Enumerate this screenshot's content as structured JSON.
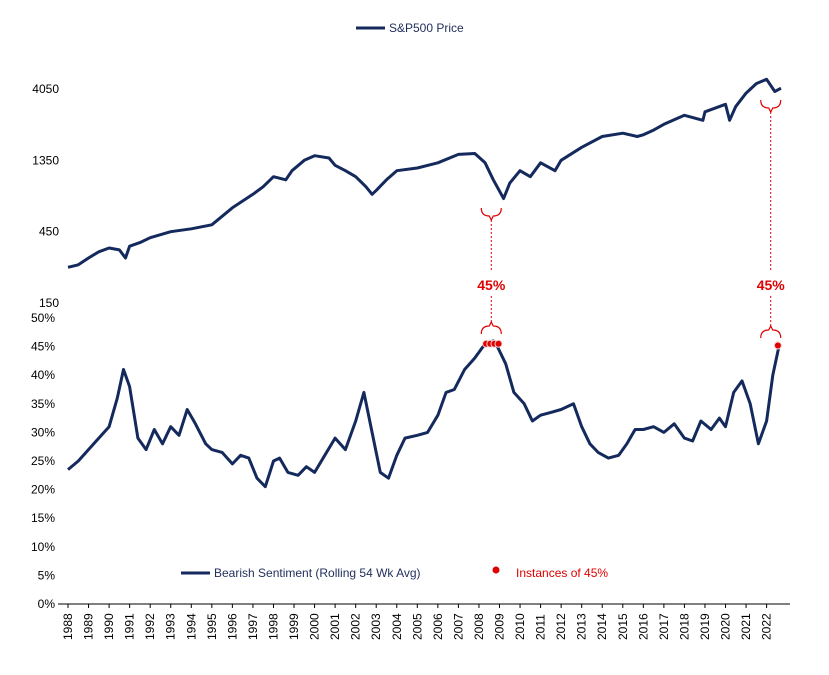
{
  "chart_data": [
    {
      "type": "line",
      "scale": "log",
      "ylim": [
        150,
        6000
      ],
      "yticks": [
        "4050",
        "1350",
        "450",
        "150"
      ],
      "ytick_values": [
        4050,
        1350,
        450,
        150
      ],
      "legend": "S&P500 Price",
      "legend_position": "top-center",
      "color": "#14295c",
      "series": [
        {
          "name": "S&P500 Price",
          "x": [
            1988,
            1988.5,
            1989,
            1989.5,
            1990,
            1990.5,
            1990.8,
            1991,
            1991.5,
            1992,
            1993,
            1994,
            1995,
            1996,
            1997,
            1997.5,
            1998,
            1998.6,
            1998.9,
            1999.5,
            2000,
            2000.7,
            2001,
            2001.5,
            2002,
            2002.5,
            2002.8,
            2003,
            2003.5,
            2004,
            2005,
            2006,
            2007,
            2007.8,
            2008.3,
            2008.7,
            2009.2,
            2009.5,
            2010,
            2010.5,
            2011,
            2011.7,
            2012,
            2013,
            2014,
            2015,
            2015.7,
            2016,
            2016.5,
            2017,
            2018,
            2018.9,
            2019,
            2020,
            2020.2,
            2020.5,
            2021,
            2021.5,
            2022,
            2022.4,
            2022.7
          ],
          "values": [
            260,
            270,
            300,
            330,
            350,
            340,
            300,
            360,
            380,
            410,
            450,
            470,
            500,
            650,
            800,
            900,
            1050,
            1000,
            1150,
            1350,
            1450,
            1400,
            1250,
            1150,
            1050,
            900,
            800,
            850,
            1000,
            1150,
            1200,
            1300,
            1480,
            1500,
            1300,
            1000,
            750,
            950,
            1150,
            1050,
            1300,
            1150,
            1350,
            1650,
            1950,
            2050,
            1950,
            2000,
            2150,
            2350,
            2700,
            2500,
            2850,
            3200,
            2500,
            3100,
            3800,
            4400,
            4700,
            3900,
            4100
          ]
        }
      ],
      "annotation": {
        "label": "45%",
        "brackets_at_x": [
          2008.6,
          2022.2
        ]
      }
    },
    {
      "type": "line",
      "ylim": [
        0,
        50
      ],
      "yticks": [
        "0%",
        "5%",
        "10%",
        "15%",
        "20%",
        "25%",
        "30%",
        "35%",
        "40%",
        "45%",
        "50%"
      ],
      "ytick_values": [
        0,
        5,
        10,
        15,
        20,
        25,
        30,
        35,
        40,
        45,
        50
      ],
      "xticks": [
        "1988",
        "1989",
        "1990",
        "1991",
        "1992",
        "1993",
        "1994",
        "1995",
        "1996",
        "1997",
        "1998",
        "1999",
        "2000",
        "2001",
        "2002",
        "2003",
        "2004",
        "2005",
        "2006",
        "2007",
        "2008",
        "2009",
        "2010",
        "2011",
        "2012",
        "2013",
        "2014",
        "2015",
        "2016",
        "2017",
        "2018",
        "2019",
        "2020",
        "2021",
        "2022"
      ],
      "legend_position": "bottom-center",
      "series": [
        {
          "name": "Bearish Sentiment (Rolling 54 Wk Avg)",
          "color": "#14295c",
          "x": [
            1988,
            1988.5,
            1989,
            1989.5,
            1990,
            1990.4,
            1990.7,
            1991,
            1991.4,
            1991.8,
            1992.2,
            1992.6,
            1993,
            1993.4,
            1993.8,
            1994.2,
            1994.7,
            1995,
            1995.5,
            1996,
            1996.4,
            1996.8,
            1997.2,
            1997.6,
            1998,
            1998.3,
            1998.7,
            1999.2,
            1999.6,
            2000,
            2000.5,
            2001,
            2001.5,
            2002,
            2002.4,
            2002.8,
            2003.2,
            2003.6,
            2004,
            2004.4,
            2005,
            2005.5,
            2006,
            2006.4,
            2006.8,
            2007.3,
            2007.8,
            2008.3,
            2008.7,
            2008.9,
            2009.3,
            2009.7,
            2010.2,
            2010.6,
            2011,
            2011.5,
            2012,
            2012.6,
            2013,
            2013.4,
            2013.8,
            2014.3,
            2014.8,
            2015.2,
            2015.6,
            2016,
            2016.5,
            2017,
            2017.5,
            2018,
            2018.4,
            2018.8,
            2019.3,
            2019.7,
            2020,
            2020.4,
            2020.8,
            2021.2,
            2021.6,
            2022,
            2022.3,
            2022.6
          ],
          "values": [
            23.5,
            25,
            27,
            29,
            31,
            36,
            41,
            38,
            29,
            27,
            30.5,
            28,
            31,
            29.5,
            34,
            31.5,
            28,
            27,
            26.5,
            24.5,
            26,
            25.5,
            22,
            20.5,
            25,
            25.5,
            23,
            22.5,
            24,
            23,
            26,
            29,
            27,
            32,
            37,
            30,
            23,
            22,
            26,
            29,
            29.5,
            30,
            33,
            37,
            37.5,
            41,
            43,
            45.5,
            46,
            45,
            42,
            37,
            35,
            32,
            33,
            33.5,
            34,
            35,
            31,
            28,
            26.5,
            25.5,
            26,
            28,
            30.5,
            30.5,
            31,
            30,
            31.5,
            29,
            28.5,
            32,
            30.5,
            32.5,
            31,
            37,
            39,
            35,
            28,
            32,
            40,
            45
          ]
        },
        {
          "name": "Instances of 45%",
          "color": "#e00000",
          "marker": "dot",
          "x": [
            2008.35,
            2008.55,
            2008.75,
            2008.95,
            2022.55
          ],
          "values": [
            45.5,
            45.5,
            45.5,
            45.5,
            45.2
          ]
        }
      ]
    }
  ]
}
